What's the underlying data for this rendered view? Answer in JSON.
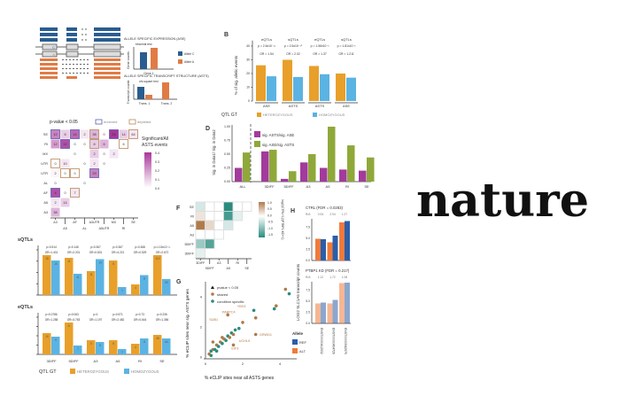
{
  "logo": "nature",
  "colors": {
    "het": "#e8a02a",
    "hom": "#5bb3e3",
    "allele_c": "#2a5d8f",
    "allele_a": "#e07b45",
    "purple": "#a23b9c",
    "green": "#8fa83a",
    "enriched": "#5a5fb0",
    "depleted": "#b8885a",
    "heat_hi": "#a8379b",
    "teal": "#2a8c7f",
    "brown": "#b07a4a",
    "ref": "#2a5ea8",
    "alt": "#ef7a3c"
  },
  "panel_a": {
    "ase_title": "ALLELE SPECIFIC EXPRESSION (ASE)",
    "ase_test": "binomial test",
    "ase_ylabel": "Gene counts",
    "gene_label": "Gene 1",
    "asts_title": "ALLELE SPECIFIC TRANSCRIPT STRUCTURE (ASTS)",
    "asts_test": "chi-square test",
    "asts_ylabel": "Transcript counts",
    "trans": [
      "Trans. 1",
      "Trans. 2"
    ],
    "allele_legend": [
      "Allele C",
      "Allele A"
    ],
    "snp_letters": [
      "C",
      "A"
    ]
  },
  "panel_b": {
    "label": "B",
    "ylabel": "% of sig. allelic events",
    "yticks": [
      "0",
      "10",
      "20",
      "30",
      "40"
    ],
    "groups": [
      {
        "qtl": "eQTLs",
        "p": "p = 2.6x10⁻¹¹",
        "or": "OR = 1.54",
        "event": "ASE",
        "het": 26,
        "hom": 18
      },
      {
        "qtl": "sQTLs",
        "p": "p = 2.6x10⁻¹⁰",
        "or": "OR = 2.02",
        "event": "ASTS",
        "het": 30,
        "hom": 17.5
      },
      {
        "qtl": "eQTLs",
        "p": "p = 1.56x10⁻³",
        "or": "OR = 1.37",
        "event": "ASTS",
        "het": 25.5,
        "hom": 19.5
      },
      {
        "qtl": "sQTLs",
        "p": "p = 1.81x10⁻³",
        "or": "OR = 1.211",
        "event": "ASE",
        "het": 20,
        "hom": 17
      }
    ],
    "legend": {
      "title": "QTL GT",
      "het": "HETEROZYGOUS",
      "hom": "HOMOZYGOUS"
    }
  },
  "panel_c": {
    "title": "p-value < 0.05",
    "enriched": "enriched",
    "depleted": "depleted",
    "colorbar_title": [
      "Significant/All",
      "ASTS events"
    ],
    "colorbar_ticks": [
      "0.4",
      "0.3",
      "0.2",
      "0.1",
      "0.0"
    ],
    "rows": [
      "SE",
      "RI",
      "MX",
      "UTR",
      "UTR",
      "AL",
      "AF",
      "A5",
      "A3"
    ],
    "cols": [
      "A3",
      "A5",
      "AF",
      "AL",
      "A3UTR",
      "A5UTR",
      "MX",
      "RI",
      "SE"
    ],
    "cells": [
      [
        [
          12,
          "e",
          0.25
        ],
        [
          6,
          "",
          0.1
        ],
        [
          14,
          "e",
          0.3
        ],
        [
          2,
          "",
          0.05
        ],
        [
          38,
          "d",
          0.15
        ],
        [
          0,
          "",
          0
        ],
        [
          24,
          "e",
          0.4
        ],
        [
          14,
          "",
          0.1
        ],
        [
          64,
          "d",
          0.05
        ]
      ],
      [
        [
          12,
          "",
          0.2
        ],
        [
          12,
          "e",
          0.35
        ],
        [
          0,
          "",
          0
        ],
        [
          0,
          "",
          0
        ],
        [
          8,
          "d",
          0.1
        ],
        [
          6,
          "",
          0.15
        ],
        null,
        [
          6,
          "d",
          0
        ]
      ],
      [
        null,
        null,
        [
          0,
          "",
          0
        ],
        null,
        [
          2,
          "",
          0.1
        ],
        [
          0,
          "",
          0
        ],
        [
          2,
          "",
          0.05
        ]
      ],
      [
        [
          0,
          "d",
          0
        ],
        [
          10,
          "",
          0.05
        ],
        null,
        [
          0,
          "",
          0
        ],
        [
          2,
          "",
          0.05
        ],
        [
          0,
          "",
          0
        ]
      ],
      [
        [
          2,
          "",
          0.02
        ],
        [
          0,
          "d",
          0
        ],
        [
          0,
          "d",
          0
        ],
        null,
        [
          29,
          "e",
          0.25
        ]
      ],
      [
        [
          0,
          "",
          0
        ],
        null,
        null,
        [
          0,
          "",
          0
        ]
      ],
      [
        [
          4,
          "e",
          0.35
        ],
        [
          0,
          "",
          0
        ],
        [
          7,
          "d",
          0.05
        ]
      ],
      [
        [
          2,
          "",
          0.05
        ],
        [
          14,
          "",
          0.1
        ]
      ],
      [
        [
          38,
          "",
          0.15
        ]
      ]
    ]
  },
  "chart_data": [
    {
      "type": "bar",
      "panel": "D",
      "categories": [
        "ALL",
        "3DIFF",
        "5DIFF",
        "A3",
        "A5",
        "RI",
        "SE"
      ],
      "ylabel": "Sig. in Data1/ Sig. in Data2",
      "ylim": [
        0,
        1
      ],
      "yticks": [
        "0.00",
        "0.25",
        "0.50",
        "0.75",
        "1.00"
      ],
      "series": [
        {
          "name": "sig. ASTS/sig. ASE",
          "values": [
            0.25,
            0.55,
            0.05,
            0.35,
            0.25,
            0.22,
            0.2
          ]
        },
        {
          "name": "sig. ASE/sig. ASTS",
          "values": [
            0.53,
            0.58,
            0.19,
            0.5,
            1.0,
            0.66,
            0.44
          ]
        }
      ]
    },
    {
      "type": "bar",
      "panel": "sQTLs",
      "title": "sQTLs",
      "categories": [
        "3DIFF",
        "5DIFF",
        "A3",
        "A5",
        "RI",
        "SE"
      ],
      "p": [
        "p=0.514",
        "p=0.146",
        "p=0.367",
        "p=0.367",
        "p=0.368",
        "p=1.15x10⁻¹¹"
      ],
      "or": [
        "OR=1.401",
        "OR=2.201",
        "OR=0.831",
        "OR=4.221",
        "OR=0.529",
        "OR=2.672"
      ],
      "het_counts": [
        "15",
        "11",
        "11",
        "5",
        "4",
        "110"
      ],
      "hom_counts": [
        "10",
        "11",
        "14",
        "1",
        "8",
        "50"
      ],
      "het": [
        0.3,
        0.28,
        0.18,
        0.26,
        0.08,
        0.3
      ],
      "hom": [
        0.26,
        0.16,
        0.27,
        0.06,
        0.15,
        0.12
      ]
    },
    {
      "type": "bar",
      "panel": "eQTLs",
      "title": "eQTLs",
      "categories": [
        "3DIFF",
        "5DIFF",
        "A3",
        "A5",
        "RI",
        "SE"
      ],
      "p": [
        "p=0.0786",
        "p=0.063",
        "p=1",
        "p=0.571",
        "p=0.73",
        "p=0.236"
      ],
      "or": [
        "OR=1.258",
        "OR=3.763",
        "OR=1.197",
        "OR=2.482",
        "OR=0.644",
        "OR=1.356"
      ],
      "het_counts": [
        "10",
        "6",
        "5",
        "5",
        "4",
        "45"
      ],
      "hom_counts": [
        "9",
        "7",
        "5",
        "7",
        "8",
        "64"
      ],
      "het": [
        0.6,
        0.9,
        0.4,
        0.4,
        0.3,
        0.55
      ],
      "hom": [
        0.5,
        0.25,
        0.35,
        0.15,
        0.45,
        0.45
      ]
    },
    {
      "type": "heatmap",
      "panel": "F",
      "rows": [
        "SE",
        "RI",
        "A5",
        "A3",
        "5DIFF",
        "3DIFF"
      ],
      "cols": [
        "3DIFF",
        "5DIFF",
        "A3",
        "A5",
        "RI",
        "SE"
      ],
      "values": [
        [
          -0.3,
          0,
          0,
          -1.5,
          0,
          0
        ],
        [
          0.2,
          0,
          0,
          -1.3,
          -0.2
        ],
        [
          1.0,
          0.3,
          0,
          -0.3
        ],
        [
          0,
          0,
          0
        ],
        [
          -0.7,
          -1.2
        ],
        [
          -0.2
        ]
      ],
      "colorbar_ticks": [
        "1.0",
        "0.5",
        "0.0",
        "-0.5",
        "-1.0",
        "-1.5"
      ],
      "colorbar_label": "log2(CTRL+1)/(PTBP1-KD+1)"
    },
    {
      "type": "scatter",
      "panel": "G",
      "xlabel": "% eCLIP sites near all ASTS genes",
      "ylabel": "% eCLIP sites near sig. ASTS genes",
      "xticks": [
        "0",
        "2",
        "4"
      ],
      "yticks": [
        "0",
        "2",
        "4"
      ],
      "xlim": [
        0,
        5
      ],
      "ylim": [
        0,
        5
      ],
      "legend": {
        "pval": "pvalue < 0.05",
        "shared": "shared",
        "specific": "condition specific"
      },
      "points": [
        [
          0.2,
          0.2,
          "s"
        ],
        [
          0.3,
          0.4,
          "c"
        ],
        [
          0.4,
          0.5,
          "s"
        ],
        [
          0.5,
          0.5,
          "c"
        ],
        [
          0.6,
          0.8,
          "s"
        ],
        [
          0.7,
          0.7,
          "c"
        ],
        [
          0.8,
          1.0,
          "s"
        ],
        [
          0.9,
          0.9,
          "c"
        ],
        [
          1.0,
          1.2,
          "s"
        ],
        [
          1.1,
          1.1,
          "c"
        ],
        [
          1.2,
          1.4,
          "c"
        ],
        [
          1.3,
          1.3,
          "s"
        ],
        [
          1.4,
          1.6,
          "c"
        ],
        [
          1.5,
          1.5,
          "s"
        ],
        [
          1.6,
          1.8,
          "c"
        ],
        [
          0.6,
          0.4,
          "c"
        ],
        [
          0.9,
          1.3,
          "s"
        ],
        [
          1.8,
          1.9,
          "c"
        ],
        [
          2.0,
          2.3,
          "s"
        ],
        [
          2.6,
          3.1,
          "c"
        ],
        [
          2.7,
          2.6,
          "s"
        ],
        [
          2.7,
          1.5,
          "s"
        ],
        [
          3.7,
          3.2,
          "c"
        ],
        [
          3.8,
          3.4,
          "s"
        ],
        [
          4.3,
          4.5,
          "s"
        ],
        [
          4.5,
          4.2,
          "c"
        ],
        [
          1.2,
          2.8,
          "s"
        ],
        [
          0.4,
          1.0,
          "s"
        ],
        [
          1.5,
          0.8,
          "s"
        ],
        [
          0.3,
          0.1,
          "c"
        ]
      ],
      "gene_labels": [
        {
          "name": "YBX3",
          "x": 1.7,
          "y": 3.3
        },
        {
          "name": "PABPC4",
          "x": 0.9,
          "y": 2.9
        },
        {
          "name": "SUB1",
          "x": 0.2,
          "y": 2.4
        },
        {
          "name": "GRWD1",
          "x": 2.9,
          "y": 1.4
        },
        {
          "name": "UCHL5",
          "x": 1.8,
          "y": 1.0
        },
        {
          "name": "EIF3",
          "x": 1.4,
          "y": 0.5
        }
      ]
    },
    {
      "type": "bar",
      "panel": "H",
      "ylabel": "LOG2 SLC1A5 transcript counts",
      "yticks": [
        "0.0",
        "2.5",
        "5.0",
        "7.5"
      ],
      "categories": [
        "ENST00000412532",
        "ENST00000434726",
        "ENST00000542575"
      ],
      "subplots": [
        {
          "title": "CTRL (FDR = 0.0283)",
          "ra_label": "R/A",
          "ra": [
            "0.94",
            "2.94",
            "1.27"
          ],
          "alt": [
            4.9,
            4.1,
            8.6
          ],
          "ref": [
            4.8,
            5.6,
            8.9
          ]
        },
        {
          "title": "PTBP1 KD (FDR = 0.217)",
          "ra_label": "R/A",
          "ra": [
            "1.12",
            "1.72",
            "1.08"
          ],
          "alt": [
            4.5,
            4.5,
            9.1
          ],
          "ref": [
            4.7,
            5.3,
            9.2
          ]
        }
      ],
      "legend": {
        "title": "Allele",
        "ref": "REF",
        "alt": "ALT"
      }
    }
  ],
  "labels": {
    "d": "D",
    "f": "F",
    "g": "G",
    "h": "H",
    "qtl_gt": "QTL GT",
    "het": "HETEROZYGOUS",
    "hom": "HOMOZYGOUS"
  }
}
